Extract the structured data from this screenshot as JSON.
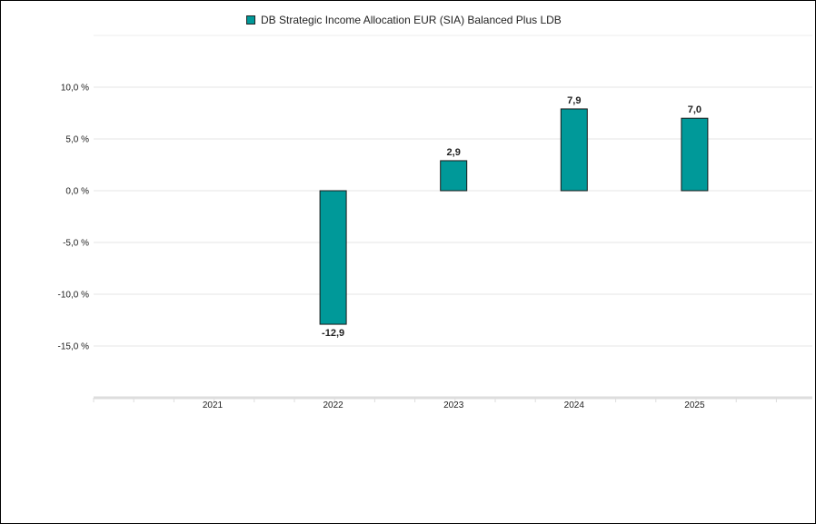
{
  "chart_data": {
    "type": "bar",
    "categories": [
      "2021",
      "2022",
      "2023",
      "2024",
      "2025"
    ],
    "series": [
      {
        "name": "DB Strategic Income Allocation EUR (SIA) Balanced Plus LDB",
        "values": [
          null,
          -12.9,
          2.9,
          7.9,
          7.0
        ],
        "labels": [
          "",
          "-12,9",
          "2,9",
          "7,9",
          "7,0"
        ],
        "color": "#009999"
      }
    ],
    "yticks": [
      10,
      5,
      0,
      -5,
      -10,
      -15
    ],
    "ytick_labels": [
      "10,0 %",
      "5,0 %",
      "0,0 %",
      "-5,0 %",
      "-10,0 %",
      "-15,0 %"
    ],
    "ylim": [
      -20,
      15
    ],
    "grid": true,
    "legend": "top-center"
  }
}
